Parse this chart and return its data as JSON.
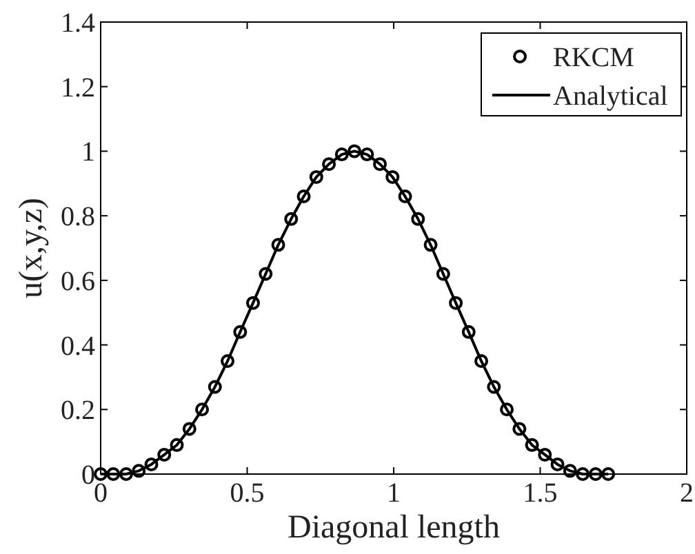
{
  "chart_data": {
    "type": "line",
    "xlabel": "Diagonal length",
    "ylabel": "u(x,y,z)",
    "x": [
      0,
      0.043,
      0.087,
      0.13,
      0.173,
      0.217,
      0.26,
      0.303,
      0.346,
      0.39,
      0.433,
      0.476,
      0.52,
      0.563,
      0.606,
      0.65,
      0.693,
      0.736,
      0.779,
      0.823,
      0.866,
      0.909,
      0.953,
      0.996,
      1.039,
      1.083,
      1.126,
      1.169,
      1.212,
      1.256,
      1.299,
      1.342,
      1.386,
      1.429,
      1.472,
      1.516,
      1.559,
      1.602,
      1.645,
      1.689,
      1.732
    ],
    "series": [
      {
        "name": "RKCM",
        "type": "scatter",
        "marker": "circle",
        "color": "#000000",
        "values": [
          0,
          0,
          0,
          0.01,
          0.03,
          0.06,
          0.09,
          0.14,
          0.2,
          0.27,
          0.35,
          0.44,
          0.53,
          0.62,
          0.71,
          0.79,
          0.86,
          0.92,
          0.96,
          0.99,
          1,
          0.99,
          0.96,
          0.92,
          0.86,
          0.79,
          0.71,
          0.62,
          0.53,
          0.44,
          0.35,
          0.27,
          0.2,
          0.14,
          0.09,
          0.06,
          0.03,
          0.01,
          0,
          0,
          0
        ]
      },
      {
        "name": "Analytical",
        "type": "line",
        "line_style": "solid",
        "color": "#000000",
        "values": [
          0,
          0,
          0,
          0.01,
          0.03,
          0.06,
          0.09,
          0.14,
          0.2,
          0.27,
          0.35,
          0.44,
          0.53,
          0.62,
          0.71,
          0.79,
          0.86,
          0.92,
          0.96,
          0.99,
          1,
          0.99,
          0.96,
          0.92,
          0.86,
          0.79,
          0.71,
          0.62,
          0.53,
          0.44,
          0.35,
          0.27,
          0.2,
          0.14,
          0.09,
          0.06,
          0.03,
          0.01,
          0,
          0,
          0
        ]
      }
    ],
    "xlim": [
      0,
      2
    ],
    "xticks": [
      0,
      0.5,
      1,
      1.5,
      2
    ],
    "ylim": [
      0,
      1.4
    ],
    "yticks": [
      0,
      0.2,
      0.4,
      0.6,
      0.8,
      1,
      1.2,
      1.4
    ],
    "legend": "top right",
    "grid": false
  }
}
